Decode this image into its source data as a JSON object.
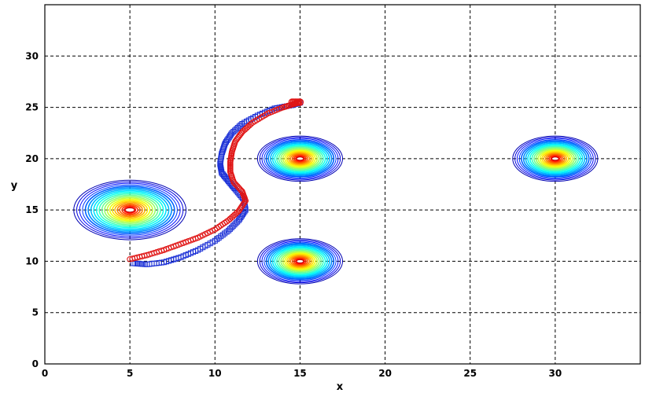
{
  "chart_data": {
    "type": "scatter",
    "title": "",
    "xlabel": "x",
    "ylabel": "y",
    "xlim": [
      0,
      35
    ],
    "ylim": [
      0,
      35
    ],
    "x_ticks": [
      0,
      5,
      10,
      15,
      20,
      25,
      30
    ],
    "y_ticks": [
      0,
      5,
      10,
      15,
      20,
      25,
      30
    ],
    "x_tick_labels": [
      "0",
      "5",
      "10",
      "15",
      "20",
      "25",
      "30"
    ],
    "y_tick_labels": [
      "0",
      "5",
      "10",
      "15",
      "20",
      "25",
      "30"
    ],
    "grid": true,
    "contours": [
      {
        "center": [
          5,
          15
        ],
        "radius": 3.3
      },
      {
        "center": [
          15,
          20
        ],
        "radius": 2.5
      },
      {
        "center": [
          15,
          10
        ],
        "radius": 2.5
      },
      {
        "center": [
          30,
          20
        ],
        "radius": 2.5
      }
    ],
    "series": [
      {
        "color": "#1a2fd6",
        "marker": "square",
        "points": [
          [
            5.2,
            9.8
          ],
          [
            6,
            9.7
          ],
          [
            7,
            9.9
          ],
          [
            8,
            10.4
          ],
          [
            9,
            11.1
          ],
          [
            10,
            12
          ],
          [
            10.8,
            13
          ],
          [
            11.4,
            14
          ],
          [
            11.8,
            15
          ],
          [
            11.7,
            16
          ],
          [
            11.2,
            17
          ],
          [
            10.8,
            17.8
          ],
          [
            10.4,
            18.6
          ],
          [
            10.3,
            19.5
          ],
          [
            10.4,
            20.5
          ],
          [
            10.6,
            21.5
          ],
          [
            11,
            22.5
          ],
          [
            11.6,
            23.4
          ],
          [
            12.5,
            24.2
          ],
          [
            13.5,
            24.9
          ],
          [
            14.5,
            25.2
          ],
          [
            15.1,
            25.5
          ]
        ]
      },
      {
        "color": "#e01515",
        "marker": "circle",
        "points": [
          [
            5,
            10.2
          ],
          [
            6,
            10.6
          ],
          [
            7,
            11.1
          ],
          [
            8,
            11.7
          ],
          [
            9,
            12.3
          ],
          [
            10,
            13.1
          ],
          [
            10.8,
            14
          ],
          [
            11.4,
            14.9
          ],
          [
            11.8,
            15.9
          ],
          [
            11.6,
            16.8
          ],
          [
            11.1,
            17.7
          ],
          [
            10.9,
            18.7
          ],
          [
            10.9,
            19.7
          ],
          [
            11,
            20.7
          ],
          [
            11.2,
            21.7
          ],
          [
            11.6,
            22.6
          ],
          [
            12.2,
            23.5
          ],
          [
            13.1,
            24.4
          ],
          [
            14,
            25
          ],
          [
            14.6,
            25.3
          ],
          [
            15,
            25.5
          ]
        ]
      }
    ]
  }
}
